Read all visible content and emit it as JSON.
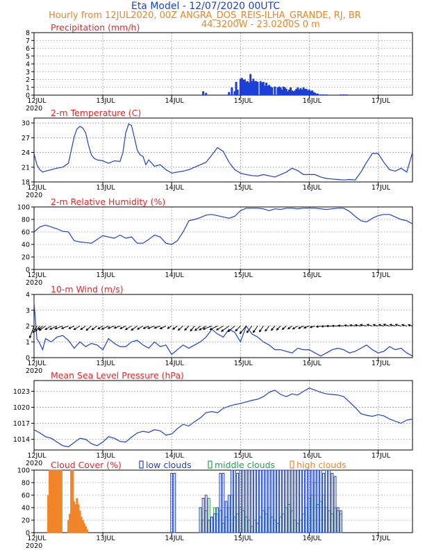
{
  "header": {
    "title": "Eta Model - 12/07/2020 00UTC",
    "line2": "Hourly from 12JUL2020, 00Z   ANGRA_DOS_REIS-ILHA_GRANDE, RJ, BR",
    "line3": "44.3200W - 23.0200S        0  m"
  },
  "colors": {
    "title_red": "#e8262a",
    "line_blue": "#1a3fd6",
    "cloud_low": "#1a3fd6",
    "cloud_mid": "#20a34a",
    "cloud_high": "#f0852a",
    "title_orange": "#e8862a"
  },
  "x_axis": {
    "day_labels": [
      "12JUL",
      "13JUL",
      "14JUL",
      "15JUL",
      "16JUL",
      "17JUL"
    ],
    "year_label": "2020",
    "hours": [
      0,
      132
    ],
    "day_hours": [
      0,
      24,
      48,
      72,
      96,
      120
    ]
  },
  "chart_data": [
    {
      "type": "bar",
      "title": "Precipitation (mm/h)",
      "ylim": [
        0,
        8
      ],
      "yticks": [
        "0",
        "1",
        "2",
        "3",
        "4",
        "5",
        "6",
        "7",
        "8"
      ],
      "x_hours": [
        59,
        60,
        68,
        69,
        70,
        70.5,
        71,
        72,
        72.5,
        73,
        73.5,
        74,
        74.5,
        75,
        75.5,
        76,
        76.5,
        77,
        77.5,
        78,
        79,
        79.5,
        80,
        80.5,
        81,
        81.5,
        82,
        82.5,
        83,
        84,
        85,
        85.5,
        86,
        86.5,
        87,
        87.5,
        88,
        88.5,
        89,
        89.5,
        90,
        90.5,
        91,
        91.5,
        92,
        92.5,
        93,
        93.5,
        94,
        94.5,
        95,
        95.5,
        96,
        96.5,
        97,
        97.5,
        98,
        98.5,
        99,
        100,
        101,
        102,
        107,
        108,
        109
      ],
      "values": [
        0.5,
        0.3,
        0.4,
        1.0,
        0.5,
        1.7,
        0.7,
        2.1,
        2.2,
        2.0,
        2.0,
        1.7,
        1.8,
        1.6,
        2.7,
        1.8,
        2.1,
        1.8,
        1.8,
        1.7,
        1.8,
        1.6,
        1.7,
        1.2,
        1.6,
        1.2,
        1.3,
        1.1,
        1.0,
        1.1,
        1.0,
        1.1,
        1.0,
        0.7,
        1.1,
        1.0,
        0.8,
        0.5,
        0.7,
        1.0,
        0.6,
        0.5,
        0.6,
        0.8,
        1.0,
        0.7,
        0.9,
        0.7,
        1.0,
        0.8,
        0.8,
        0.6,
        0.7,
        0.5,
        0.6,
        0.4,
        0.3,
        0.2,
        0.2,
        0.1,
        0.1,
        0.1,
        0.1,
        0.1,
        0.1
      ]
    },
    {
      "type": "line",
      "title": "2-m Temperature (C)",
      "ylim": [
        18,
        31
      ],
      "yticks": [
        "18",
        "21",
        "24",
        "27",
        "30"
      ],
      "x_hours": [
        0,
        1,
        2,
        3,
        4,
        6,
        8,
        10,
        12,
        13,
        14,
        15,
        16,
        17,
        18,
        19,
        20,
        21,
        22,
        24,
        26,
        28,
        30,
        31,
        32,
        33,
        34,
        35,
        36,
        37,
        38,
        39,
        40,
        42,
        44,
        46,
        48,
        50,
        52,
        54,
        56,
        58,
        60,
        62,
        64,
        66,
        68,
        70,
        72,
        74,
        76,
        78,
        80,
        84,
        88,
        90,
        92,
        94,
        96,
        98,
        100,
        102,
        104,
        106,
        108,
        110,
        112,
        114,
        116,
        118,
        120,
        122,
        124,
        126,
        128,
        130,
        132
      ],
      "values": [
        23.8,
        21.5,
        20.5,
        20.0,
        20.2,
        20.5,
        20.8,
        21.0,
        21.8,
        24.5,
        27.2,
        28.8,
        29.3,
        29.0,
        28.0,
        25.5,
        23.5,
        22.8,
        22.5,
        22.3,
        21.8,
        22.3,
        22.2,
        24.0,
        28.0,
        29.8,
        29.5,
        27.0,
        24.5,
        23.5,
        23.2,
        21.5,
        22.5,
        21.2,
        21.5,
        20.5,
        19.8,
        20.0,
        20.2,
        20.5,
        21.0,
        21.5,
        22.0,
        23.5,
        25.0,
        24.2,
        22.0,
        20.5,
        19.8,
        19.5,
        19.3,
        19.2,
        19.5,
        19.0,
        20.0,
        20.8,
        20.3,
        19.5,
        19.5,
        19.5,
        19.0,
        18.7,
        18.6,
        18.5,
        18.4,
        18.5,
        18.4,
        20.0,
        22.0,
        23.8,
        23.8,
        22.0,
        20.5,
        20.2,
        20.8,
        20.0,
        24.0
      ]
    },
    {
      "type": "line",
      "title": "2-m Relative Humidity (%)",
      "ylim": [
        0,
        100
      ],
      "yticks": [
        "0",
        "20",
        "40",
        "60",
        "80",
        "100"
      ],
      "x_hours": [
        0,
        2,
        4,
        6,
        8,
        10,
        12,
        14,
        16,
        18,
        20,
        22,
        24,
        26,
        28,
        30,
        32,
        34,
        36,
        38,
        40,
        42,
        44,
        46,
        48,
        50,
        52,
        54,
        56,
        58,
        60,
        62,
        64,
        66,
        68,
        70,
        72,
        74,
        76,
        78,
        80,
        82,
        84,
        86,
        88,
        90,
        92,
        94,
        96,
        98,
        100,
        102,
        104,
        106,
        108,
        110,
        112,
        114,
        116,
        118,
        120,
        122,
        124,
        126,
        128,
        130,
        132
      ],
      "values": [
        60,
        68,
        71,
        68,
        65,
        61,
        60,
        46,
        44,
        43,
        42,
        48,
        54,
        52,
        50,
        55,
        50,
        52,
        42,
        42,
        48,
        55,
        52,
        42,
        40,
        46,
        60,
        78,
        80,
        83,
        87,
        88,
        86,
        84,
        82,
        85,
        94,
        98,
        98,
        98,
        97,
        94,
        97,
        96,
        98,
        98,
        97,
        98,
        98,
        98,
        97,
        96,
        97,
        98,
        98,
        93,
        85,
        78,
        76,
        82,
        86,
        88,
        88,
        84,
        80,
        78,
        73
      ]
    },
    {
      "type": "line",
      "title": "10-m Wind (m/s)",
      "ylim": [
        0,
        4
      ],
      "yticks": [
        "0",
        "1",
        "2",
        "3",
        "4"
      ],
      "x_hours": [
        0,
        1,
        2,
        3,
        4,
        6,
        8,
        10,
        12,
        14,
        16,
        18,
        20,
        22,
        24,
        26,
        28,
        30,
        32,
        34,
        36,
        38,
        40,
        42,
        44,
        46,
        48,
        50,
        52,
        54,
        56,
        58,
        60,
        62,
        64,
        66,
        68,
        70,
        72,
        74,
        76,
        78,
        80,
        82,
        84,
        86,
        88,
        90,
        92,
        94,
        96,
        98,
        100,
        102,
        104,
        106,
        108,
        110,
        112,
        114,
        116,
        118,
        120,
        122,
        124,
        126,
        128,
        130,
        132
      ],
      "values": [
        3.5,
        1.2,
        0.9,
        0.5,
        1.2,
        1.0,
        1.3,
        1.4,
        1.1,
        0.6,
        1.0,
        0.7,
        0.9,
        0.8,
        0.5,
        1.2,
        0.9,
        0.7,
        0.7,
        1.0,
        1.1,
        0.8,
        0.6,
        1.0,
        0.7,
        0.8,
        0.2,
        0.5,
        0.8,
        0.6,
        0.8,
        1.0,
        1.3,
        1.8,
        1.5,
        1.3,
        1.8,
        1.6,
        1.0,
        2.0,
        1.5,
        1.3,
        1.0,
        0.8,
        0.5,
        0.5,
        0.4,
        0.3,
        0.6,
        0.5,
        0.5,
        0.3,
        0.1,
        0.3,
        0.5,
        0.6,
        0.5,
        0.3,
        0.4,
        0.6,
        0.8,
        0.5,
        0.3,
        0.4,
        0.7,
        0.5,
        0.6,
        0.3,
        0.1
      ],
      "arrow_directions_deg": [
        200,
        210,
        220,
        230,
        235,
        240,
        245,
        250,
        250,
        245,
        240,
        235,
        230,
        235,
        240,
        245,
        250,
        250,
        245,
        240,
        235,
        240,
        245,
        250,
        250,
        245,
        240,
        235,
        230,
        225,
        220,
        230,
        240,
        250,
        245,
        240,
        235,
        230,
        225,
        220,
        218,
        215,
        215,
        218,
        220,
        225,
        230,
        235,
        240,
        245,
        250,
        255,
        260,
        265,
        270,
        272,
        275,
        278,
        280,
        280,
        282,
        285,
        285,
        285,
        285,
        285,
        285,
        285,
        285
      ]
    },
    {
      "type": "line",
      "title": "Mean Sea Level Pressure (hPa)",
      "ylim": [
        1012,
        1025
      ],
      "yticks": [
        "1014",
        "1017",
        "1020",
        "1023"
      ],
      "x_hours": [
        0,
        2,
        4,
        6,
        8,
        10,
        12,
        14,
        16,
        18,
        20,
        22,
        24,
        26,
        28,
        30,
        32,
        34,
        36,
        38,
        40,
        42,
        44,
        46,
        48,
        50,
        52,
        54,
        56,
        58,
        60,
        62,
        64,
        66,
        68,
        70,
        72,
        74,
        76,
        78,
        80,
        82,
        84,
        86,
        88,
        90,
        92,
        94,
        96,
        98,
        100,
        102,
        104,
        106,
        108,
        110,
        112,
        114,
        116,
        118,
        120,
        122,
        124,
        126,
        128,
        130,
        132
      ],
      "values": [
        1015.8,
        1015.2,
        1014.5,
        1014.2,
        1013.5,
        1012.8,
        1012.6,
        1013.4,
        1014.2,
        1014.0,
        1013.2,
        1012.8,
        1013.5,
        1014.5,
        1014.2,
        1013.6,
        1013.5,
        1014.4,
        1015.2,
        1015.5,
        1015.3,
        1015.8,
        1015.6,
        1014.8,
        1015.0,
        1016.0,
        1016.8,
        1016.5,
        1017.3,
        1018.0,
        1019.0,
        1019.2,
        1019.0,
        1019.8,
        1020.2,
        1020.5,
        1020.7,
        1021.0,
        1021.3,
        1021.5,
        1022.0,
        1022.8,
        1023.2,
        1022.4,
        1022.0,
        1022.5,
        1022.3,
        1023.0,
        1023.6,
        1023.2,
        1022.8,
        1022.5,
        1022.4,
        1022.3,
        1022.0,
        1021.0,
        1020.0,
        1018.8,
        1018.5,
        1018.3,
        1018.6,
        1018.4,
        1017.8,
        1017.4,
        1017.0,
        1017.6,
        1017.8
      ]
    },
    {
      "type": "bar",
      "title": "Cloud Cover (%)",
      "legend": [
        "low clouds",
        "middle clouds",
        "high clouds"
      ],
      "ylim": [
        0,
        100
      ],
      "yticks": [
        "0",
        "20",
        "40",
        "60",
        "80",
        "100"
      ],
      "series": [
        {
          "name": "high clouds",
          "x_hours": [
            5,
            5.5,
            6,
            6.5,
            7,
            7.5,
            8,
            8.5,
            9,
            9.5,
            12,
            12.5,
            13,
            13.5,
            14,
            14.5,
            15,
            15.5,
            16,
            16.5,
            17,
            17.5,
            18,
            18.5
          ],
          "values": [
            60,
            100,
            100,
            100,
            100,
            100,
            100,
            100,
            100,
            100,
            20,
            30,
            100,
            100,
            50,
            45,
            55,
            45,
            35,
            25,
            20,
            15,
            10,
            5
          ]
        },
        {
          "name": "middle clouds",
          "x_hours": [
            59,
            60,
            61,
            62,
            63,
            64,
            65,
            66,
            67,
            68,
            69,
            70,
            71,
            72,
            73,
            74,
            75,
            76,
            77,
            78,
            79,
            80,
            81,
            82,
            83,
            84,
            85,
            86,
            87,
            88,
            89,
            90,
            91,
            92,
            93,
            94,
            95,
            96,
            97,
            98,
            99,
            100,
            101,
            102,
            103,
            104,
            105,
            106,
            107
          ],
          "values": [
            20,
            35,
            55,
            25,
            40,
            30,
            35,
            15,
            25,
            40,
            60,
            25,
            30,
            40,
            35,
            25,
            20,
            10,
            20,
            15,
            25,
            35,
            30,
            40,
            25,
            20,
            15,
            25,
            30,
            40,
            45,
            35,
            20,
            15,
            20,
            30,
            40,
            55,
            60,
            80,
            45,
            50,
            60,
            40,
            35,
            30,
            40,
            35,
            30
          ]
        },
        {
          "name": "low clouds",
          "x_hours": [
            48,
            49,
            58,
            59,
            60,
            61,
            62,
            63,
            64,
            65,
            66,
            67,
            68,
            69,
            70,
            71,
            72,
            73,
            74,
            75,
            76,
            77,
            78,
            79,
            80,
            81,
            82,
            83,
            84,
            85,
            86,
            87,
            88,
            89,
            90,
            91,
            92,
            93,
            94,
            95,
            96,
            97,
            98,
            99,
            100,
            101,
            102,
            103,
            104,
            105,
            106,
            107
          ],
          "values": [
            95,
            95,
            40,
            55,
            60,
            20,
            25,
            30,
            40,
            95,
            95,
            50,
            60,
            100,
            100,
            95,
            100,
            100,
            100,
            100,
            100,
            100,
            100,
            100,
            100,
            100,
            100,
            100,
            100,
            100,
            100,
            100,
            100,
            100,
            100,
            100,
            100,
            100,
            100,
            100,
            100,
            100,
            100,
            100,
            100,
            95,
            100,
            100,
            95,
            90,
            40,
            35
          ]
        }
      ]
    }
  ]
}
